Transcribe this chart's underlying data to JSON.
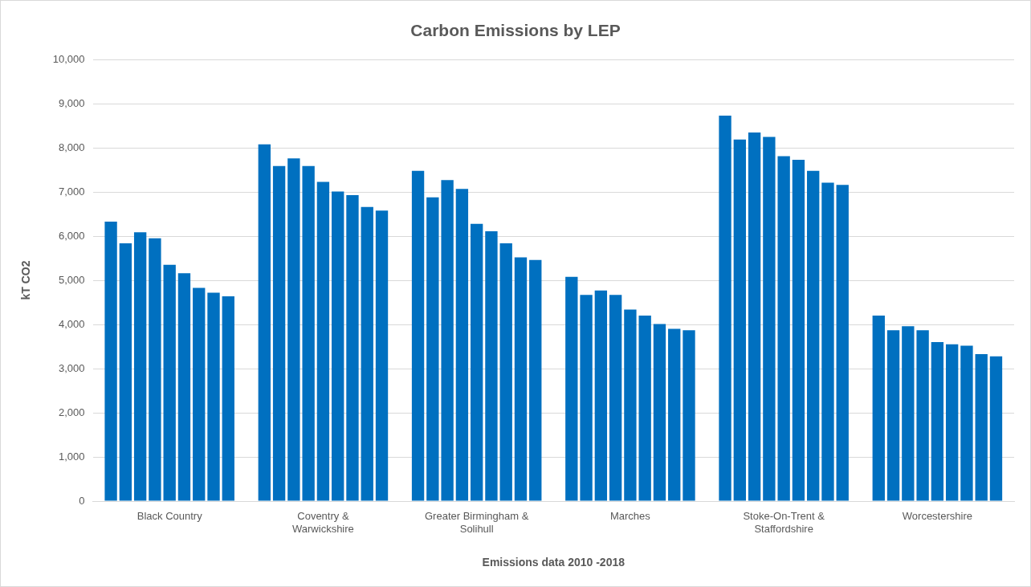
{
  "chart_data": {
    "type": "bar",
    "title": "Carbon Emissions by LEP",
    "xlabel": "Emissions data 2010 -2018",
    "ylabel": "kT CO2",
    "categories": [
      "Black Country",
      "Coventry & Warwickshire",
      "Greater Birmingham & Solihull",
      "Marches",
      "Stoke-On-Trent & Staffordshire",
      "Worcestershire"
    ],
    "series": [
      {
        "color": "#0070c0",
        "values": [
          6330,
          8080,
          7480,
          5080,
          8730,
          4200
        ]
      },
      {
        "color": "#0070c0",
        "values": [
          5840,
          7590,
          6880,
          4670,
          8190,
          3870
        ]
      },
      {
        "color": "#0070c0",
        "values": [
          6090,
          7760,
          7270,
          4770,
          8350,
          3960
        ]
      },
      {
        "color": "#0070c0",
        "values": [
          5950,
          7590,
          7070,
          4670,
          8250,
          3870
        ]
      },
      {
        "color": "#0070c0",
        "values": [
          5350,
          7230,
          6280,
          4340,
          7810,
          3600
        ]
      },
      {
        "color": "#0070c0",
        "values": [
          5160,
          7010,
          6110,
          4200,
          7730,
          3550
        ]
      },
      {
        "color": "#0070c0",
        "values": [
          4830,
          6930,
          5840,
          4010,
          7480,
          3520
        ]
      },
      {
        "color": "#0070c0",
        "values": [
          4720,
          6660,
          5520,
          3900,
          7210,
          3330
        ]
      },
      {
        "color": "#0070c0",
        "values": [
          4640,
          6580,
          5460,
          3870,
          7160,
          3280
        ]
      }
    ],
    "ylim": [
      0,
      10000
    ],
    "yticks": [
      0,
      {
        "value": 1000,
        "label": "1,000"
      },
      {
        "value": 2000,
        "label": "2,000"
      },
      {
        "value": 3000,
        "label": "3,000"
      },
      {
        "value": 4000,
        "label": "4,000"
      },
      {
        "value": 5000,
        "label": "5,000"
      },
      {
        "value": 6000,
        "label": "6,000"
      },
      {
        "value": 7000,
        "label": "7,000"
      },
      {
        "value": 8000,
        "label": "8,000"
      },
      {
        "value": 9000,
        "label": "9,000"
      },
      {
        "value": 10000,
        "label": "10,000"
      }
    ],
    "grid": "y",
    "legend": false
  }
}
